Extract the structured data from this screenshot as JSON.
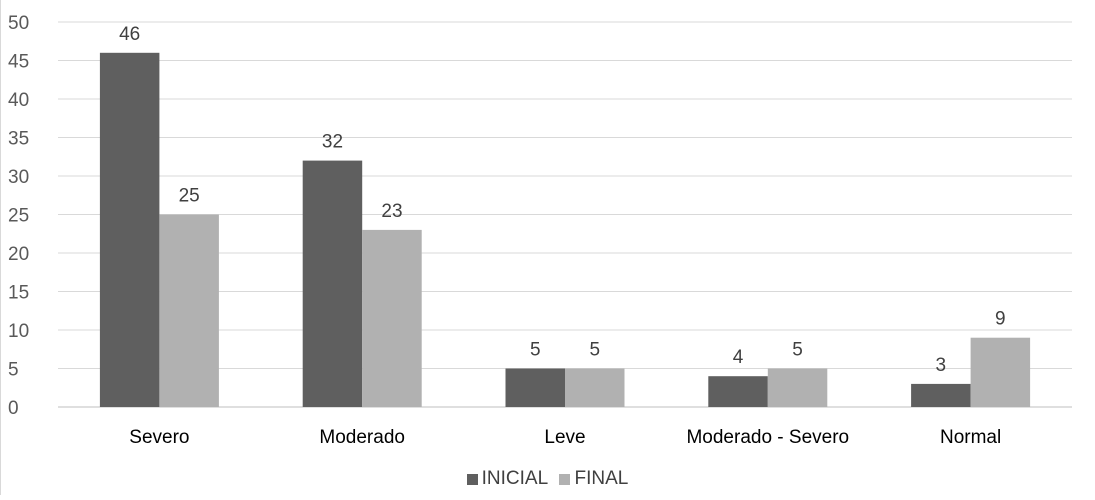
{
  "chart_data": {
    "type": "bar",
    "categories": [
      "Severo",
      "Moderado",
      "Leve",
      "Moderado - Severo",
      "Normal"
    ],
    "series": [
      {
        "name": "INICIAL",
        "values": [
          46,
          32,
          5,
          4,
          3
        ],
        "color": "#5f5f5f"
      },
      {
        "name": "FINAL",
        "values": [
          25,
          23,
          5,
          5,
          9
        ],
        "color": "#b1b1b1"
      }
    ],
    "ylim": [
      0,
      50
    ],
    "yticks": [
      "0",
      "5",
      "10",
      "15",
      "20",
      "25",
      "30",
      "35",
      "40",
      "45",
      "50"
    ],
    "grid": true,
    "legend_position": "bottom"
  }
}
